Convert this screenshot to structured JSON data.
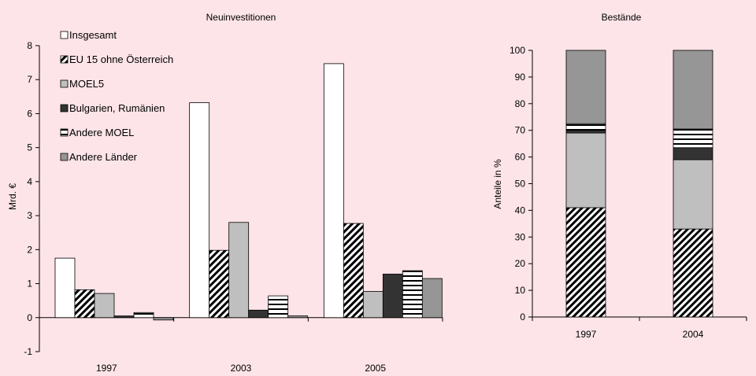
{
  "chart_data": [
    {
      "type": "bar",
      "title": "Neuinvestitionen",
      "ylabel": "Mrd. €",
      "ylim": [
        -1,
        8
      ],
      "yticks": [
        -1,
        0,
        1,
        2,
        3,
        4,
        5,
        6,
        7,
        8
      ],
      "categories": [
        "1997",
        "2003",
        "2005"
      ],
      "legend_position": "top-left",
      "series": [
        {
          "name": "Insgesamt",
          "pattern": "white",
          "values": [
            1.75,
            6.32,
            7.47
          ]
        },
        {
          "name": "EU 15 ohne Österreich",
          "pattern": "diagonal",
          "values": [
            0.82,
            1.98,
            2.77
          ]
        },
        {
          "name": "MOEL5",
          "pattern": "lightgray",
          "values": [
            0.71,
            2.8,
            0.77
          ]
        },
        {
          "name": "Bulgarien, Rumänien",
          "pattern": "dark",
          "values": [
            0.05,
            0.22,
            1.28
          ]
        },
        {
          "name": "Andere MOEL",
          "pattern": "horizontal",
          "values": [
            0.15,
            0.64,
            1.38
          ]
        },
        {
          "name": "Andere Länder",
          "pattern": "gray",
          "values": [
            -0.07,
            0.05,
            1.15
          ]
        }
      ]
    },
    {
      "type": "stacked-bar",
      "title": "Bestände",
      "ylabel": "Anteile in %",
      "ylim": [
        0,
        100
      ],
      "yticks": [
        0,
        10,
        20,
        30,
        40,
        50,
        60,
        70,
        80,
        90,
        100
      ],
      "categories": [
        "1997",
        "2004"
      ],
      "series": [
        {
          "name": "EU 15 ohne Österreich",
          "pattern": "diagonal",
          "values": [
            41,
            33
          ]
        },
        {
          "name": "MOEL5",
          "pattern": "lightgray",
          "values": [
            28,
            26
          ]
        },
        {
          "name": "Bulgarien, Rumänien",
          "pattern": "dark",
          "values": [
            1,
            4.5
          ]
        },
        {
          "name": "Andere MOEL",
          "pattern": "horizontal",
          "values": [
            2.5,
            7
          ]
        },
        {
          "name": "Andere Länder",
          "pattern": "gray",
          "values": [
            27.5,
            29.5
          ]
        }
      ]
    }
  ],
  "colors": {
    "background": "#fde4e8",
    "white": "#ffffff",
    "lightgray": "#bfbfbf",
    "dark": "#333333",
    "gray": "#969696",
    "stroke": "#000000"
  }
}
